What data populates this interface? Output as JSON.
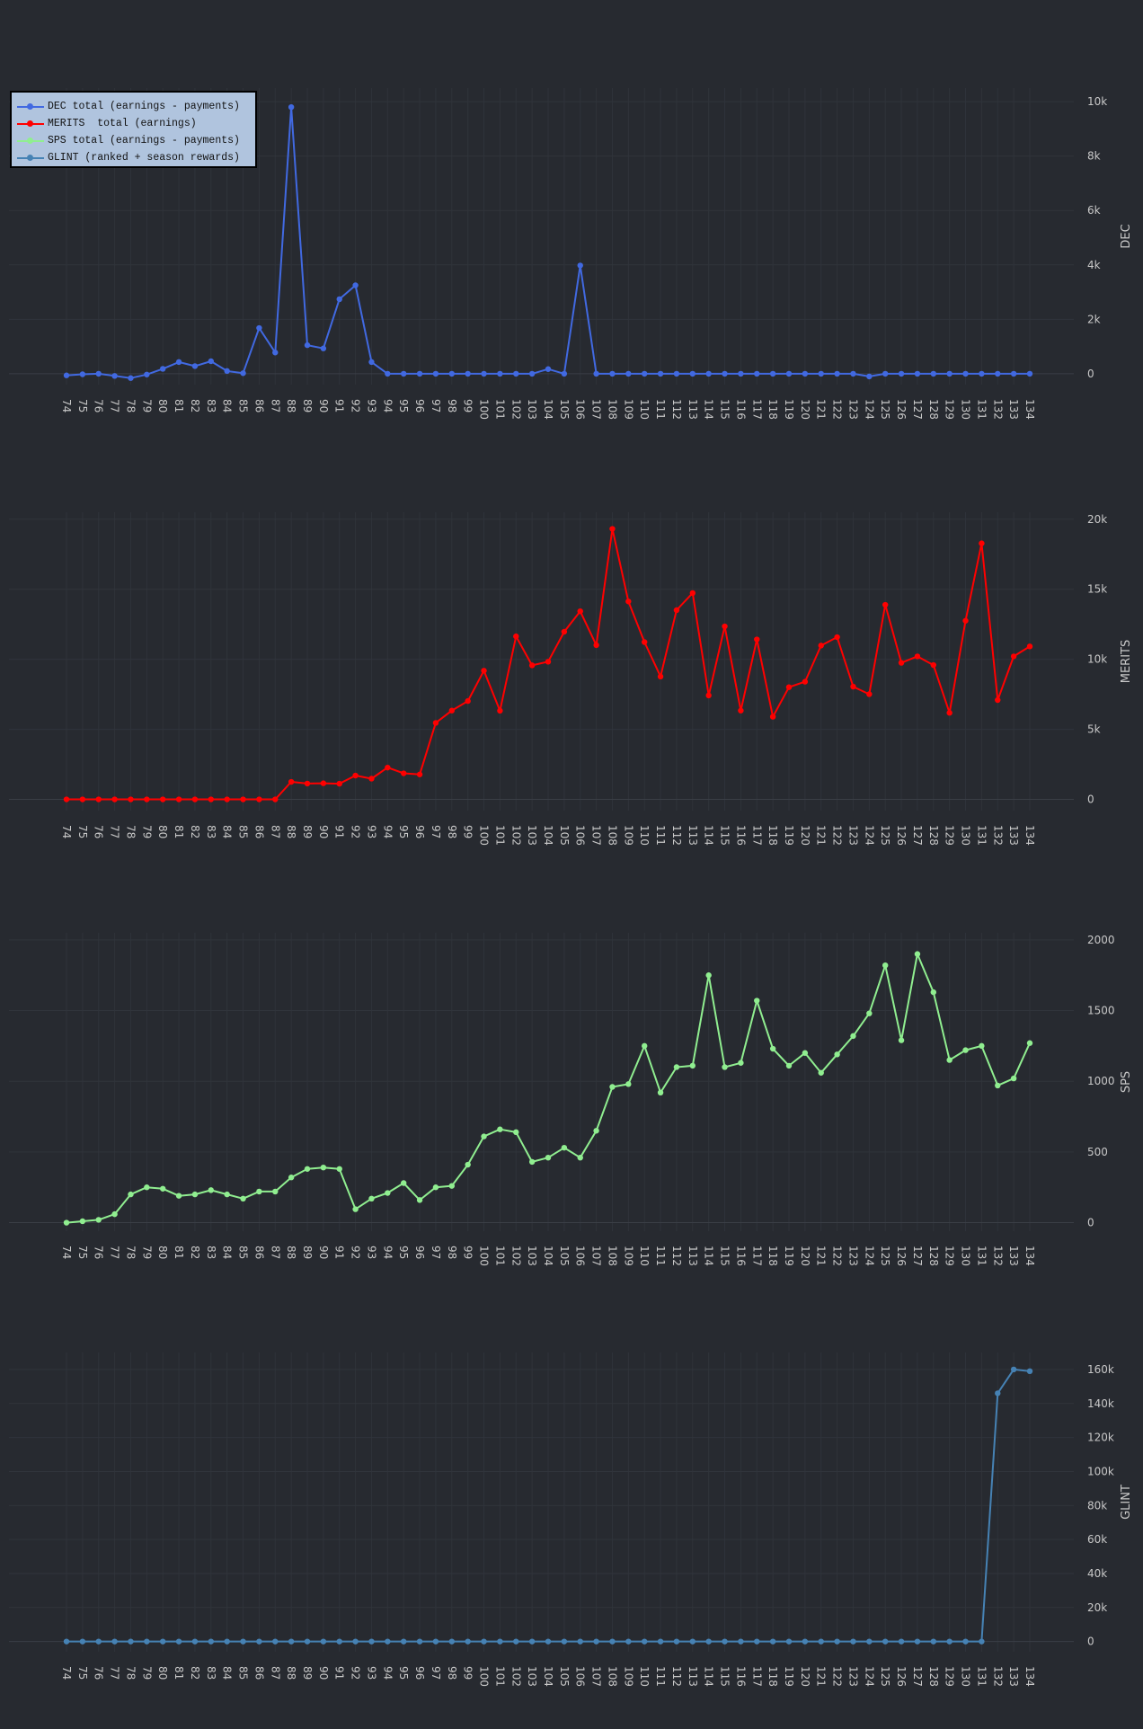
{
  "legend": [
    {
      "label": "DEC total (earnings - payments)",
      "color": "#4169e1"
    },
    {
      "label": "MERITS  total (earnings)",
      "color": "#ff0000"
    },
    {
      "label": "SPS total (earnings - payments)",
      "color": "#90ee90"
    },
    {
      "label": "GLINT (ranked + season rewards)",
      "color": "#4682b4"
    }
  ],
  "chart_data": [
    {
      "type": "line",
      "ylabel": "DEC",
      "color": "#4169e1",
      "ylim": [
        -400,
        10500
      ],
      "yticks": [
        0,
        2000,
        4000,
        6000,
        8000,
        10000
      ],
      "ytick_labels": [
        "0",
        "2k",
        "4k",
        "6k",
        "8k",
        "10k"
      ],
      "x": [
        "74",
        "75",
        "76",
        "77",
        "78",
        "79",
        "80",
        "81",
        "82",
        "83",
        "84",
        "85",
        "86",
        "87",
        "88",
        "89",
        "90",
        "91",
        "92",
        "93",
        "94",
        "95",
        "96",
        "97",
        "98",
        "99",
        "100",
        "101",
        "102",
        "103",
        "104",
        "105",
        "106",
        "107",
        "108",
        "109",
        "110",
        "111",
        "112",
        "113",
        "114",
        "115",
        "116",
        "117",
        "118",
        "119",
        "120",
        "121",
        "122",
        "123",
        "124",
        "125",
        "126",
        "127",
        "128",
        "129",
        "130",
        "131",
        "132",
        "133",
        "134"
      ],
      "values": [
        -60,
        -20,
        0,
        -80,
        -160,
        -30,
        180,
        430,
        280,
        460,
        100,
        20,
        1680,
        780,
        9800,
        1050,
        930,
        2740,
        3250,
        430,
        0,
        0,
        0,
        0,
        0,
        0,
        0,
        0,
        0,
        0,
        170,
        0,
        3980,
        0,
        0,
        0,
        0,
        0,
        0,
        0,
        0,
        0,
        0,
        0,
        0,
        0,
        0,
        0,
        0,
        0,
        -100,
        0,
        0,
        0,
        0,
        0,
        0,
        0,
        0,
        0,
        0
      ]
    },
    {
      "type": "line",
      "ylabel": "MERITS",
      "color": "#ff0000",
      "ylim": [
        -800,
        20500
      ],
      "yticks": [
        0,
        5000,
        10000,
        15000,
        20000
      ],
      "ytick_labels": [
        "0",
        "5k",
        "10k",
        "15k",
        "20k"
      ],
      "x": [
        "74",
        "75",
        "76",
        "77",
        "78",
        "79",
        "80",
        "81",
        "82",
        "83",
        "84",
        "85",
        "86",
        "87",
        "88",
        "89",
        "90",
        "91",
        "92",
        "93",
        "94",
        "95",
        "96",
        "97",
        "98",
        "99",
        "100",
        "101",
        "102",
        "103",
        "104",
        "105",
        "106",
        "107",
        "108",
        "109",
        "110",
        "111",
        "112",
        "113",
        "114",
        "115",
        "116",
        "117",
        "118",
        "119",
        "120",
        "121",
        "122",
        "123",
        "124",
        "125",
        "126",
        "127",
        "128",
        "129",
        "130",
        "131",
        "132",
        "133",
        "134"
      ],
      "values": [
        0,
        0,
        0,
        0,
        0,
        0,
        0,
        0,
        0,
        0,
        0,
        0,
        0,
        0,
        1250,
        1130,
        1150,
        1120,
        1700,
        1480,
        2270,
        1860,
        1780,
        5460,
        6340,
        7020,
        9190,
        6330,
        11640,
        9570,
        9830,
        11970,
        13430,
        11010,
        19310,
        14130,
        11230,
        8770,
        13510,
        14730,
        7420,
        12350,
        6340,
        11420,
        5900,
        8010,
        8400,
        10980,
        11580,
        8050,
        7510,
        13890,
        9750,
        10210,
        9590,
        6180,
        12750,
        18280,
        7090,
        10210,
        10920
      ]
    },
    {
      "type": "line",
      "ylabel": "SPS",
      "color": "#90ee90",
      "ylim": [
        -60,
        2050
      ],
      "yticks": [
        0,
        500,
        1000,
        1500,
        2000
      ],
      "ytick_labels": [
        "0",
        "500",
        "1000",
        "1500",
        "2000"
      ],
      "x": [
        "74",
        "75",
        "76",
        "77",
        "78",
        "79",
        "80",
        "81",
        "82",
        "83",
        "84",
        "85",
        "86",
        "87",
        "88",
        "89",
        "90",
        "91",
        "92",
        "93",
        "94",
        "95",
        "96",
        "97",
        "98",
        "99",
        "100",
        "101",
        "102",
        "103",
        "104",
        "105",
        "106",
        "107",
        "108",
        "109",
        "110",
        "111",
        "112",
        "113",
        "114",
        "115",
        "116",
        "117",
        "118",
        "119",
        "120",
        "121",
        "122",
        "123",
        "124",
        "125",
        "126",
        "127",
        "128",
        "129",
        "130",
        "131",
        "132",
        "133",
        "134"
      ],
      "values": [
        0,
        10,
        20,
        60,
        200,
        250,
        240,
        190,
        200,
        230,
        200,
        170,
        220,
        220,
        320,
        380,
        390,
        380,
        95,
        170,
        210,
        280,
        160,
        250,
        260,
        410,
        610,
        660,
        640,
        430,
        460,
        530,
        460,
        650,
        960,
        980,
        1250,
        920,
        1100,
        1110,
        1750,
        1100,
        1130,
        1570,
        1230,
        1110,
        1200,
        1060,
        1190,
        1320,
        1480,
        1820,
        1290,
        1900,
        1630,
        1150,
        1220,
        1250,
        970,
        1020,
        1270
      ]
    },
    {
      "type": "line",
      "ylabel": "GLINT",
      "color": "#4682b4",
      "ylim": [
        -6000,
        170000
      ],
      "yticks": [
        0,
        20000,
        40000,
        60000,
        80000,
        100000,
        120000,
        140000,
        160000
      ],
      "ytick_labels": [
        "0",
        "20k",
        "40k",
        "60k",
        "80k",
        "100k",
        "120k",
        "140k",
        "160k"
      ],
      "x": [
        "74",
        "75",
        "76",
        "77",
        "78",
        "79",
        "80",
        "81",
        "82",
        "83",
        "84",
        "85",
        "86",
        "87",
        "88",
        "89",
        "90",
        "91",
        "92",
        "93",
        "94",
        "95",
        "96",
        "97",
        "98",
        "99",
        "100",
        "101",
        "102",
        "103",
        "104",
        "105",
        "106",
        "107",
        "108",
        "109",
        "110",
        "111",
        "112",
        "113",
        "114",
        "115",
        "116",
        "117",
        "118",
        "119",
        "120",
        "121",
        "122",
        "123",
        "124",
        "125",
        "126",
        "127",
        "128",
        "129",
        "130",
        "131",
        "132",
        "133",
        "134"
      ],
      "values": [
        0,
        0,
        0,
        0,
        0,
        0,
        0,
        0,
        0,
        0,
        0,
        0,
        0,
        0,
        0,
        0,
        0,
        0,
        0,
        0,
        0,
        0,
        0,
        0,
        0,
        0,
        0,
        0,
        0,
        0,
        0,
        0,
        0,
        0,
        0,
        0,
        0,
        0,
        0,
        0,
        0,
        0,
        0,
        0,
        0,
        0,
        0,
        0,
        0,
        0,
        0,
        0,
        0,
        0,
        0,
        0,
        0,
        0,
        146000,
        160000,
        159000
      ]
    }
  ]
}
